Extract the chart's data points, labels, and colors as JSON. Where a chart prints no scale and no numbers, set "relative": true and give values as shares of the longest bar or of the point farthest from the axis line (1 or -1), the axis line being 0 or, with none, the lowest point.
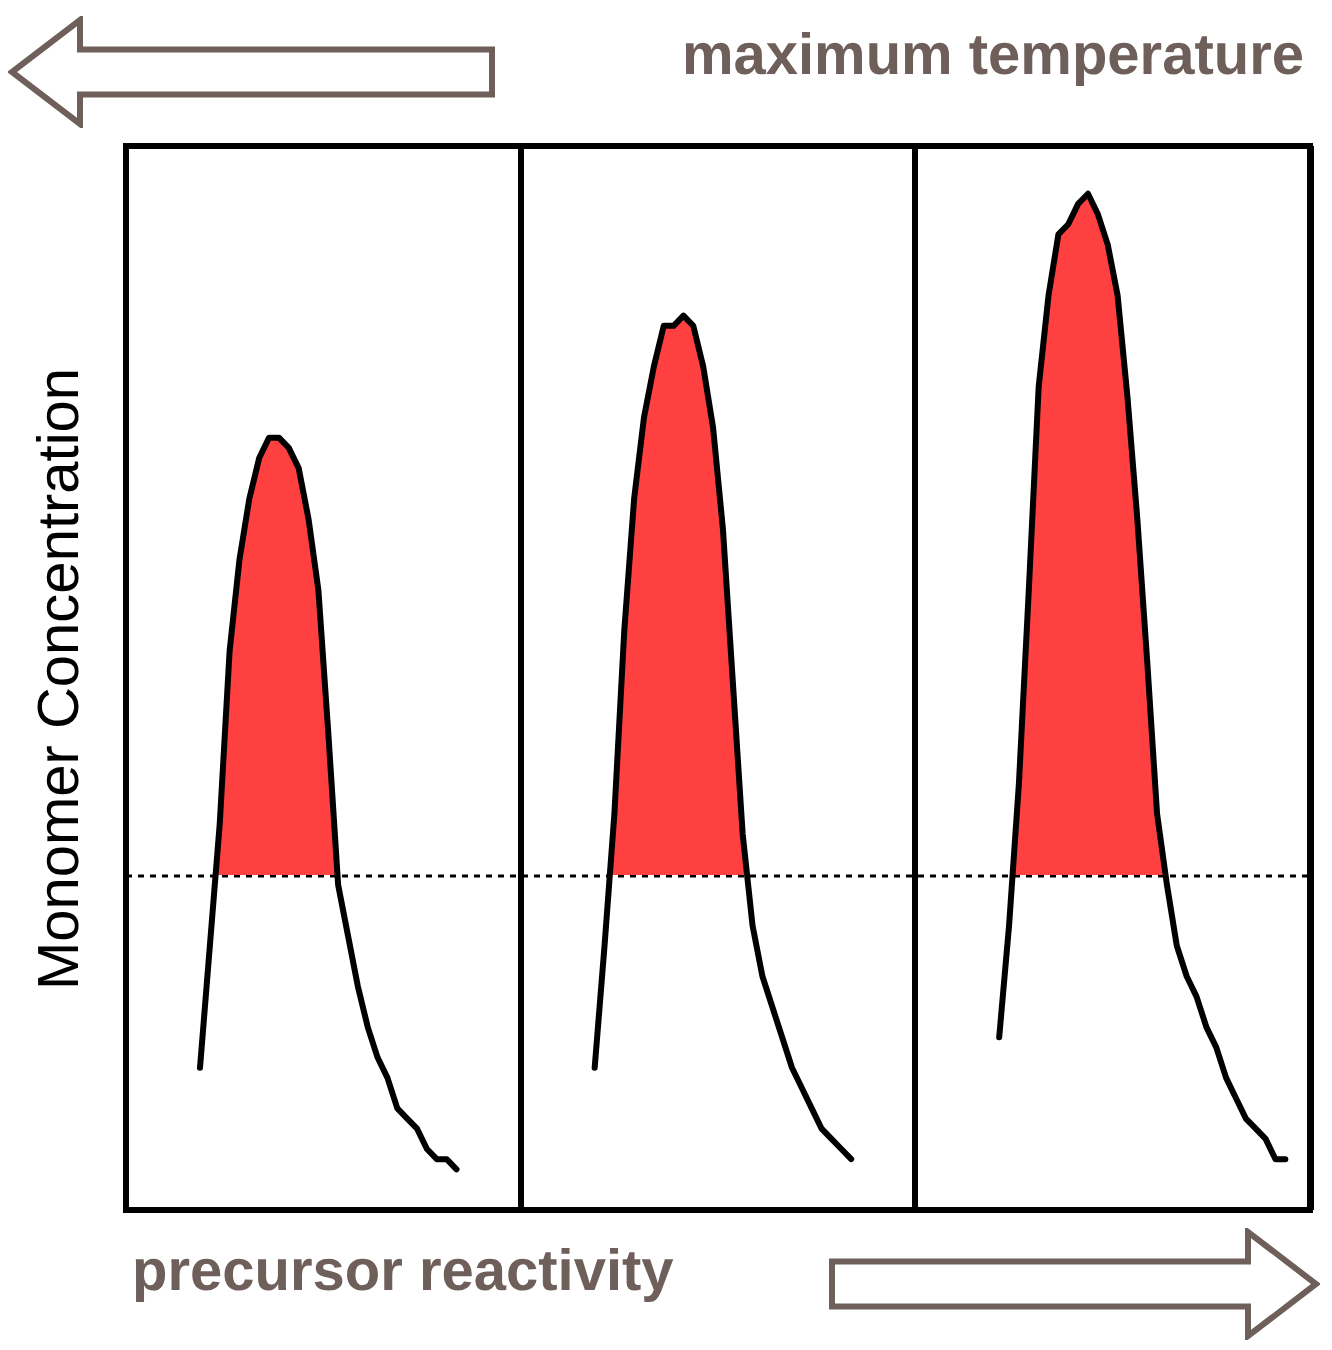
{
  "chart_data": {
    "type": "area",
    "relative": true,
    "ylabel": "Monomer Concentration",
    "annotations": [
      "maximum temperature",
      "precursor reactivity"
    ],
    "grid": "x",
    "categories": [
      null,
      null,
      null,
      null,
      null,
      null,
      null,
      null,
      null,
      null,
      null,
      null,
      null,
      null,
      null,
      null,
      null,
      null,
      null,
      null,
      null,
      null,
      null,
      null,
      null,
      null,
      null,
      null,
      null,
      null,
      null,
      null,
      null,
      null,
      null,
      null,
      null,
      null,
      null,
      null,
      null,
      null,
      null,
      null,
      null,
      null,
      null,
      null,
      null,
      null,
      null,
      null,
      null,
      null,
      null,
      null,
      null,
      null,
      null,
      null,
      null,
      null,
      null,
      null,
      null,
      null,
      null,
      null,
      null,
      null,
      null,
      null,
      null,
      null,
      null,
      null,
      null,
      null,
      null,
      null,
      null,
      null,
      null,
      null,
      null,
      null,
      null,
      null,
      null,
      null,
      null,
      null,
      null,
      null,
      null,
      null,
      null,
      null,
      null,
      null,
      null,
      null,
      null,
      null,
      null,
      null,
      null,
      null,
      null,
      null,
      null,
      null,
      null,
      null,
      null,
      null,
      null,
      null,
      null,
      null
    ],
    "series": [
      {
        "color": "#ff4040",
        "values": [
          null,
          null,
          null,
          null,
          null,
          null,
          null,
          0.14,
          0.26,
          0.38,
          0.55,
          0.64,
          0.7,
          0.74,
          0.76,
          0.76,
          0.75,
          0.73,
          0.68,
          0.61,
          0.47,
          0.32,
          0.27,
          0.22,
          0.18,
          0.15,
          0.13,
          0.1,
          0.09,
          0.08,
          0.06,
          0.05,
          0.05,
          0.04,
          null,
          null,
          null,
          null,
          null,
          null,
          null,
          null,
          null,
          null,
          null,
          null,
          null,
          null,
          null,
          null,
          null,
          null,
          null,
          null,
          null,
          null,
          null,
          null,
          null,
          null,
          null,
          null,
          null,
          null,
          null,
          null,
          null,
          null,
          null,
          null,
          null,
          null,
          null,
          null,
          null,
          null,
          null,
          null,
          null,
          null,
          null,
          null,
          null,
          null,
          null,
          null,
          null,
          null,
          null,
          null,
          null,
          null,
          null,
          null,
          null,
          null,
          null,
          null,
          null,
          null,
          null,
          null,
          null,
          null,
          null,
          null,
          null,
          null,
          null,
          null,
          null,
          null,
          null,
          null,
          null,
          null,
          null,
          null,
          null,
          null
        ]
      },
      {
        "color": "#ff4040",
        "values": [
          null,
          null,
          null,
          null,
          null,
          null,
          null,
          null,
          null,
          null,
          null,
          null,
          null,
          null,
          null,
          null,
          null,
          null,
          null,
          null,
          null,
          null,
          null,
          null,
          null,
          null,
          null,
          null,
          null,
          null,
          null,
          null,
          null,
          null,
          null,
          null,
          null,
          null,
          null,
          null,
          null,
          null,
          null,
          null,
          null,
          null,
          null,
          0.14,
          0.26,
          0.39,
          0.57,
          0.7,
          0.78,
          0.83,
          0.87,
          0.87,
          0.88,
          0.87,
          0.83,
          0.77,
          0.67,
          0.52,
          0.37,
          0.28,
          0.23,
          0.2,
          0.17,
          0.14,
          0.12,
          0.1,
          0.08,
          0.07,
          0.06,
          0.05,
          null,
          null,
          null,
          null,
          null,
          null,
          null,
          null,
          null,
          null,
          null,
          null,
          null,
          null,
          null,
          null,
          null,
          null,
          null,
          null,
          null,
          null,
          null,
          null,
          null,
          null,
          null,
          null,
          null,
          null,
          null,
          null,
          null,
          null,
          null,
          null,
          null,
          null,
          null,
          null,
          null,
          null,
          null,
          null,
          null,
          null
        ]
      },
      {
        "color": "#ff4040",
        "values": [
          null,
          null,
          null,
          null,
          null,
          null,
          null,
          null,
          null,
          null,
          null,
          null,
          null,
          null,
          null,
          null,
          null,
          null,
          null,
          null,
          null,
          null,
          null,
          null,
          null,
          null,
          null,
          null,
          null,
          null,
          null,
          null,
          null,
          null,
          null,
          null,
          null,
          null,
          null,
          null,
          null,
          null,
          null,
          null,
          null,
          null,
          null,
          null,
          null,
          null,
          null,
          null,
          null,
          null,
          null,
          null,
          null,
          null,
          null,
          null,
          null,
          null,
          null,
          null,
          null,
          null,
          null,
          null,
          null,
          null,
          null,
          null,
          null,
          null,
          null,
          null,
          null,
          null,
          null,
          null,
          null,
          null,
          null,
          null,
          null,
          null,
          null,
          null,
          0.17,
          0.28,
          0.42,
          0.61,
          0.81,
          0.9,
          0.96,
          0.97,
          0.99,
          1,
          0.98,
          0.95,
          0.9,
          0.8,
          0.68,
          0.54,
          0.39,
          0.32,
          0.26,
          0.23,
          0.21,
          0.18,
          0.16,
          0.13,
          0.11,
          0.09,
          0.08,
          0.07,
          0.05,
          0.05,
          null,
          null
        ]
      }
    ],
    "ref_lines": [
      {
        "axis": "y",
        "value": 0.33,
        "color": "#000000",
        "line_style": "dotted"
      }
    ]
  }
}
